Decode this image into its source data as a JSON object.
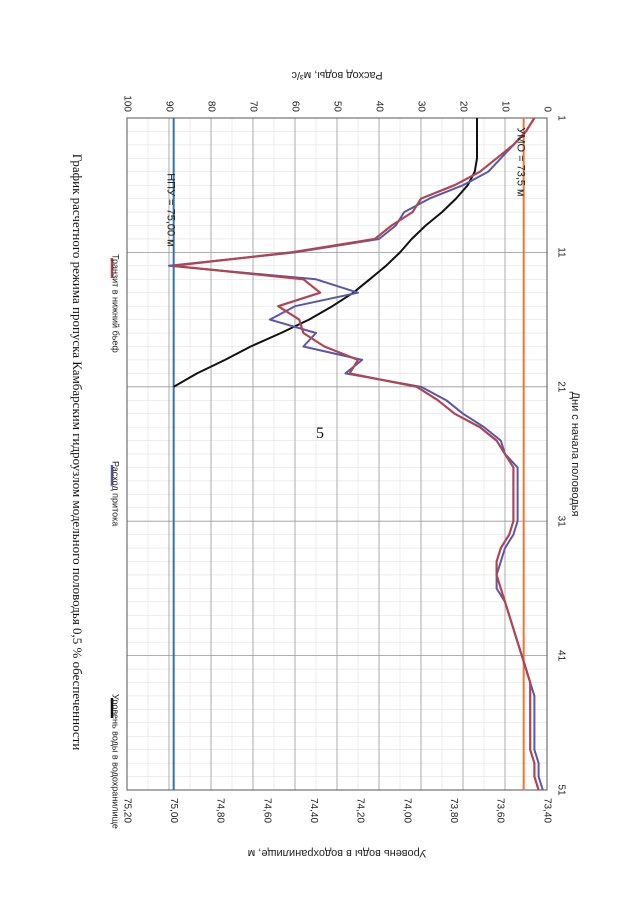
{
  "page": {
    "number": "5"
  },
  "chart_data": {
    "type": "line",
    "title": "График расчетного режима пропуска Камбарским гидроузлом модельного половодья 0,5 % обеспеченности",
    "xlabel": "Дни с начала половодья",
    "ylabel_left": "Уровень воды в водохранилище, м",
    "ylabel_right": "Расход воды, м³/с",
    "x_ticks": [
      "1",
      "11",
      "21",
      "31",
      "41",
      "51"
    ],
    "xlim": [
      1,
      51
    ],
    "y_left_ticks": [
      "73,40",
      "73,60",
      "73,80",
      "74,00",
      "74,20",
      "74,40",
      "74,60",
      "74,80",
      "75,00",
      "75,20"
    ],
    "ylim_left": [
      73.4,
      75.2
    ],
    "y_right_ticks": [
      "0",
      "10",
      "20",
      "30",
      "40",
      "50",
      "60",
      "70",
      "80",
      "90",
      "100"
    ],
    "ylim_right": [
      0,
      100
    ],
    "annotations": {
      "npu": "НПУ = 75,00 м",
      "umo": "УМО = 73,5 м"
    },
    "reference_lines": {
      "npu_level": 75.0,
      "umo_level": 73.5
    },
    "legend": [
      "Уровень воды в водохранилище",
      "Расход притока",
      "Транзит в нижний бьеф"
    ],
    "colors": {
      "level": "#111111",
      "inflow": "#5a57a8",
      "outflow": "#b04452",
      "npu": "#2e74b5",
      "umo": "#e07b39",
      "grid_major": "#9a9a9a",
      "grid_minor": "#dcdcdc"
    },
    "series": [
      {
        "name": "Уровень воды в водохранилище",
        "axis": "left",
        "x": [
          1,
          2,
          3,
          4,
          5,
          6,
          7,
          8,
          9,
          10,
          11,
          12,
          13,
          14,
          15,
          16,
          17,
          18,
          19,
          20,
          21
        ],
        "values": [
          73.7,
          73.7,
          73.7,
          73.7,
          73.71,
          73.74,
          73.79,
          73.85,
          73.92,
          73.98,
          74.03,
          74.09,
          74.16,
          74.23,
          74.32,
          74.42,
          74.54,
          74.67,
          74.78,
          74.9,
          75.0
        ]
      },
      {
        "name": "Расход притока",
        "axis": "right",
        "x": [
          1,
          2,
          3,
          4,
          5,
          6,
          7,
          8,
          9,
          10,
          11,
          12,
          13,
          14,
          15,
          16,
          17,
          18,
          19,
          20,
          21,
          22,
          23,
          24,
          25,
          26,
          27,
          28,
          29,
          30,
          31,
          32,
          33,
          34,
          35,
          36,
          37,
          38,
          39,
          40,
          41,
          42,
          43,
          44,
          45,
          46,
          47,
          48,
          49,
          50,
          51
        ],
        "values": [
          3,
          5,
          8,
          11,
          14,
          20,
          28,
          34,
          36,
          40,
          60,
          90,
          55,
          45,
          60,
          66,
          55,
          58,
          44,
          48,
          30,
          24,
          20,
          15,
          11,
          10,
          7,
          7,
          7,
          7,
          7,
          8,
          10,
          11,
          12,
          12,
          10,
          9,
          8,
          7,
          6,
          5,
          4,
          3,
          3,
          3,
          3,
          3,
          2,
          2,
          1
        ]
      },
      {
        "name": "Транзит в нижний бьеф",
        "axis": "right",
        "x": [
          1,
          2,
          3,
          4,
          5,
          6,
          7,
          8,
          9,
          10,
          11,
          12,
          13,
          14,
          15,
          16,
          17,
          18,
          19,
          20,
          21,
          22,
          23,
          24,
          25,
          26,
          27,
          28,
          29,
          30,
          31,
          32,
          33,
          34,
          35,
          36,
          37,
          38,
          39,
          40,
          41,
          42,
          43,
          44,
          45,
          46,
          47,
          48,
          49,
          50,
          51
        ],
        "values": [
          3,
          5,
          8,
          12,
          16,
          22,
          30,
          32,
          37,
          41,
          61,
          89,
          58,
          54,
          64,
          59,
          58,
          53,
          45,
          47,
          31,
          26,
          22,
          16,
          12,
          10,
          8,
          8,
          8,
          8,
          8,
          9,
          11,
          12,
          12,
          11,
          10,
          9,
          8,
          7,
          6,
          5,
          4,
          4,
          4,
          4,
          4,
          4,
          3,
          3,
          2
        ]
      }
    ]
  }
}
